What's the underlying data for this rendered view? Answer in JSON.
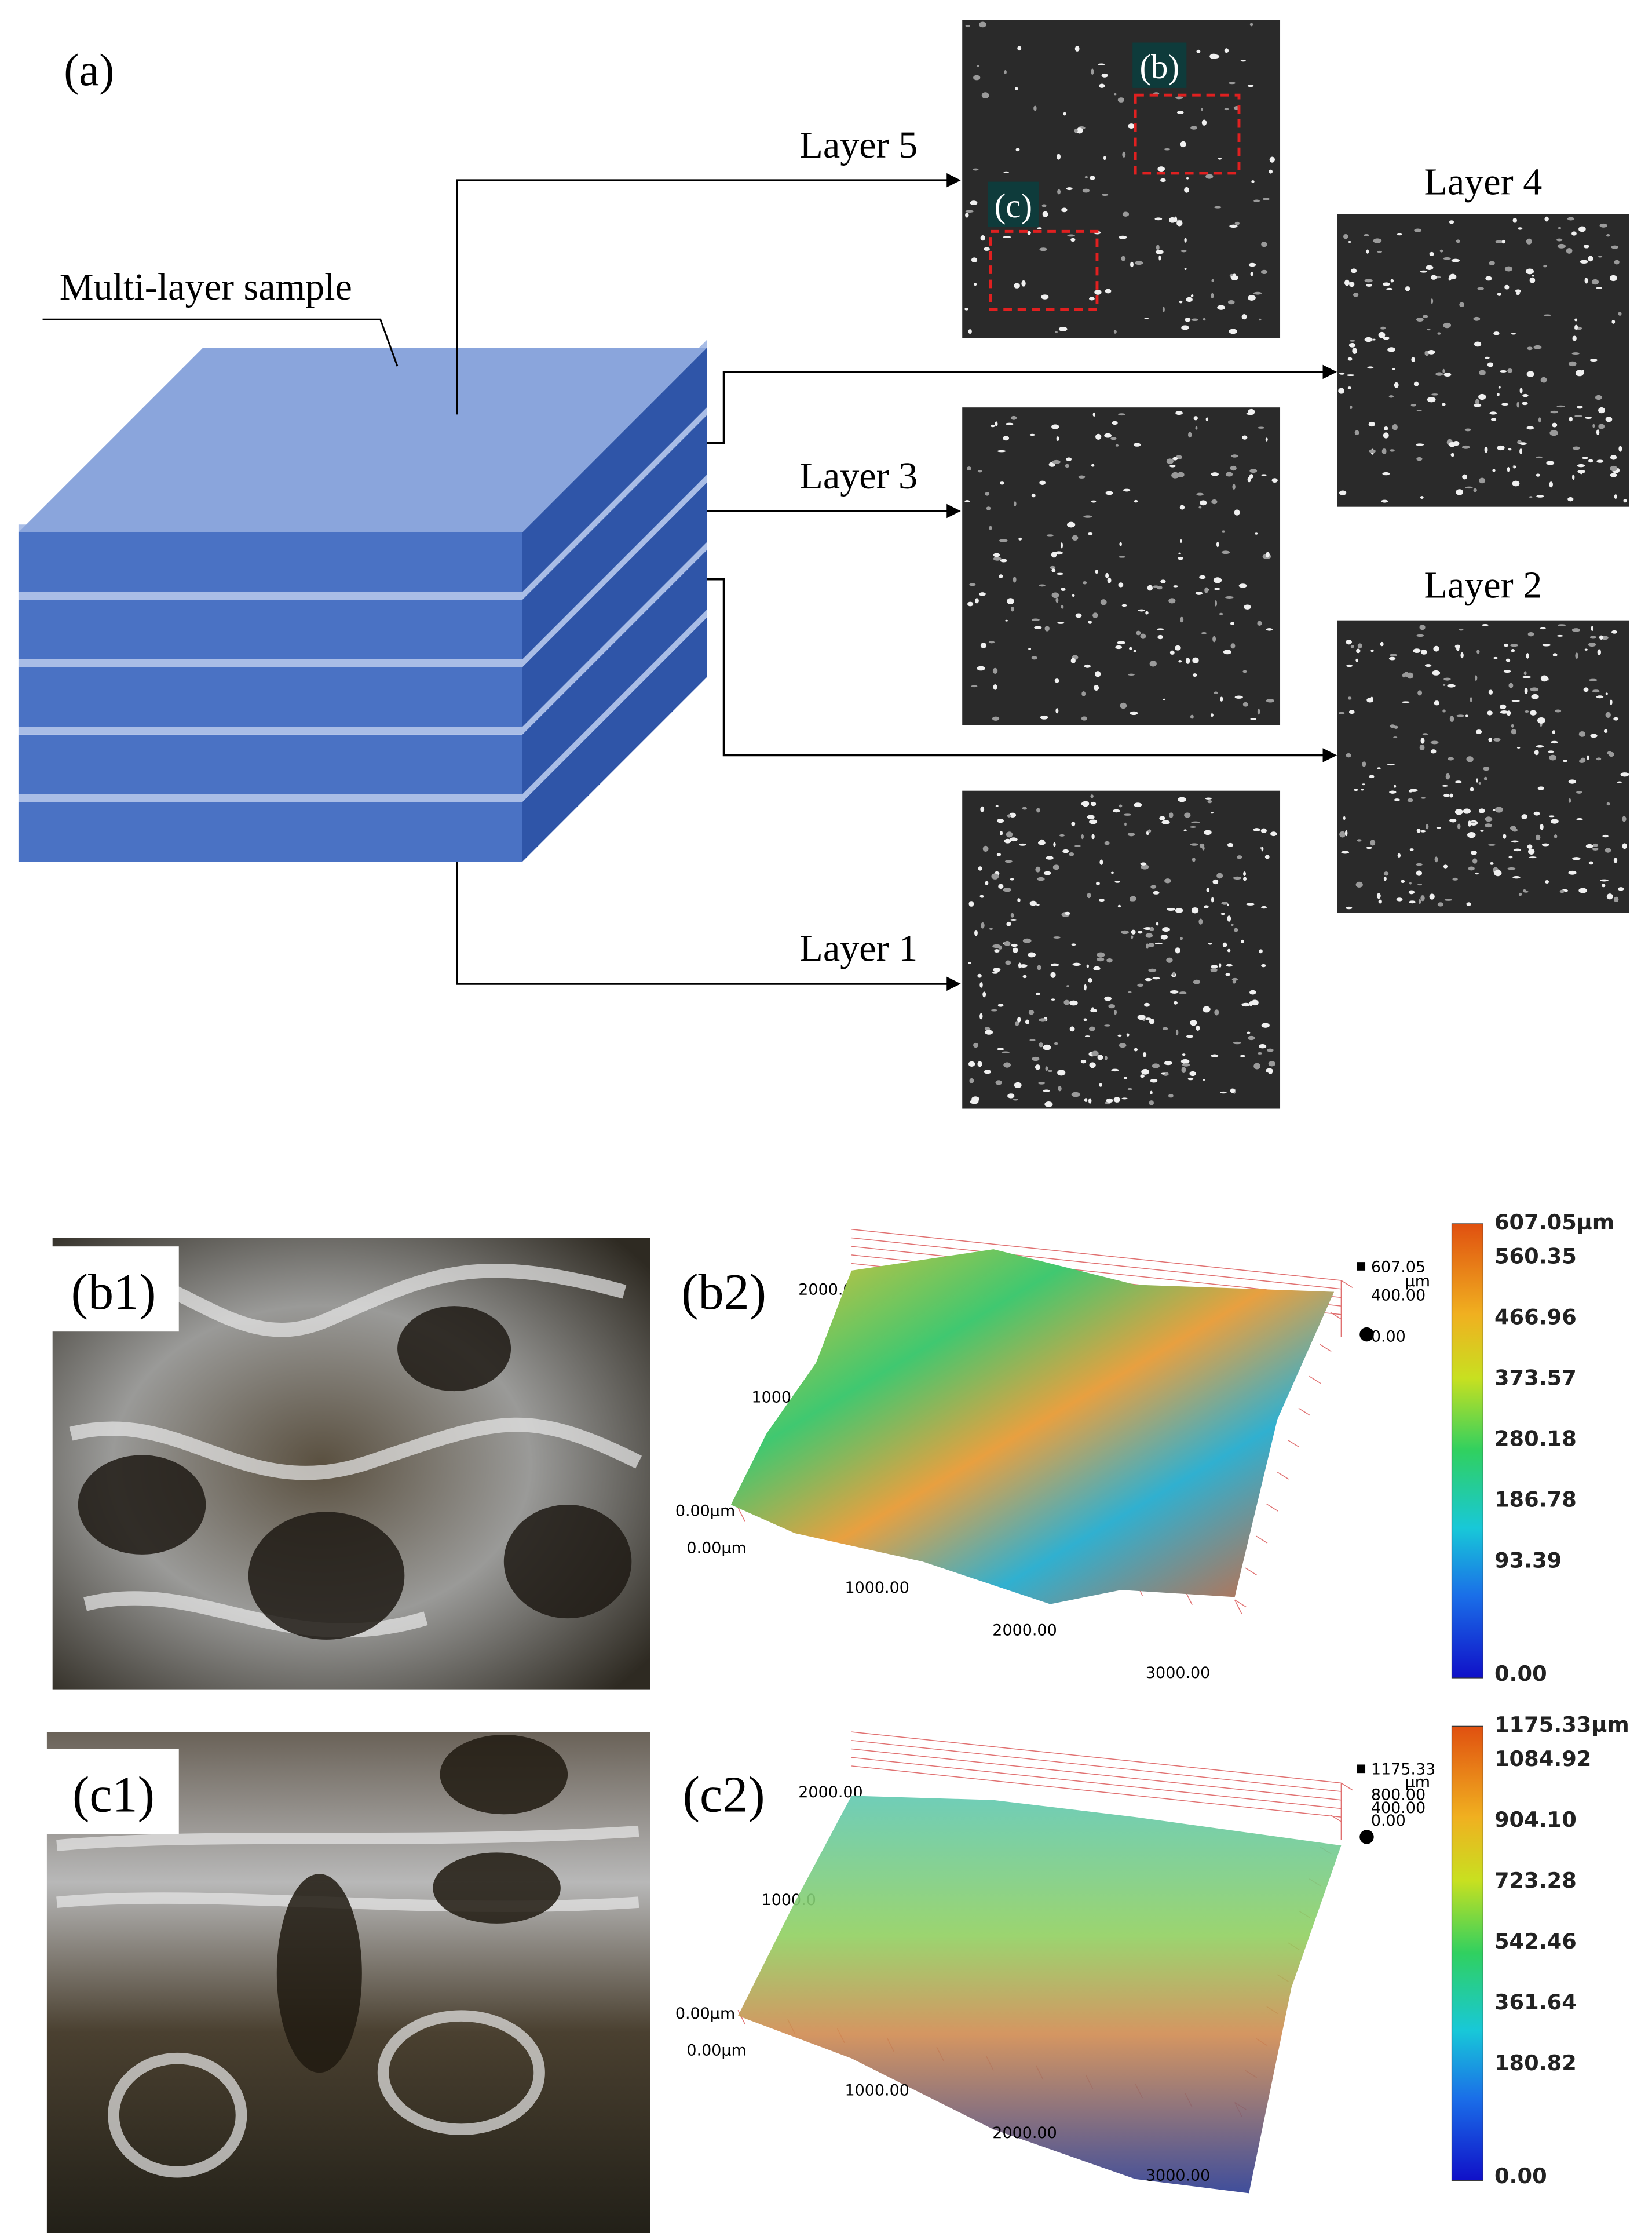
{
  "panel_a": {
    "label": "(a)",
    "sample_label": "Multi-layer sample",
    "layers": [
      "Layer 5",
      "Layer 4",
      "Layer 3",
      "Layer 2",
      "Layer 1"
    ],
    "insets": [
      "(b)",
      "(c)"
    ]
  },
  "panel_b": {
    "photo_label": "(b1)",
    "map_label": "(b2)",
    "axis_labels": [
      "2000.00",
      "1000.00",
      "0.00µm",
      "0.00µm",
      "1000.00",
      "2000.00",
      "3000.00"
    ],
    "z_labels": [
      "607.05",
      "µm",
      "400.00",
      "0.00"
    ],
    "colorbar": [
      "607.05µm",
      "560.35",
      "466.96",
      "373.57",
      "280.18",
      "186.78",
      "93.39",
      "0.00"
    ]
  },
  "panel_c": {
    "photo_label": "(c1)",
    "map_label": "(c2)",
    "axis_labels": [
      "2000.00",
      "1000.0",
      "0.00µm",
      "0.00µm",
      "1000.00",
      "2000.00",
      "3000.00"
    ],
    "z_labels": [
      "1175.33",
      "µm",
      "800.00",
      "400.00",
      "0.00"
    ],
    "colorbar": [
      "1175.33µm",
      "1084.92",
      "904.10",
      "723.28",
      "542.46",
      "361.64",
      "180.82",
      "0.00"
    ]
  }
}
